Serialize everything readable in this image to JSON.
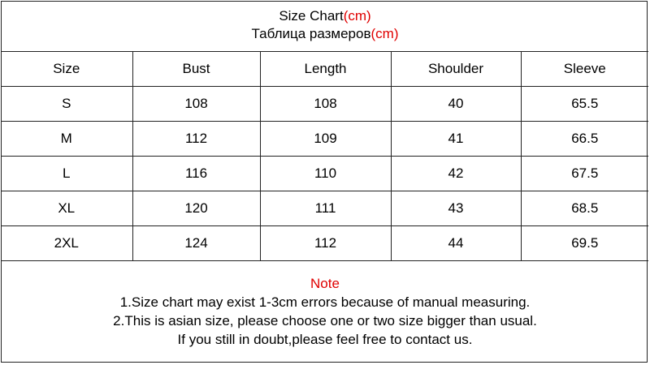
{
  "title": {
    "line1": "Size Chart",
    "line2": "Таблица размеров",
    "unit": "(cm)"
  },
  "colors": {
    "accent": "#e00000"
  },
  "table": {
    "headers": [
      "Size",
      "Bust",
      "Length",
      "Shoulder",
      "Sleeve"
    ],
    "rows": [
      [
        "S",
        "108",
        "108",
        "40",
        "65.5"
      ],
      [
        "M",
        "112",
        "109",
        "41",
        "66.5"
      ],
      [
        "L",
        "116",
        "110",
        "42",
        "67.5"
      ],
      [
        "XL",
        "120",
        "111",
        "43",
        "68.5"
      ],
      [
        "2XL",
        "124",
        "112",
        "44",
        "69.5"
      ]
    ]
  },
  "note": {
    "heading": "Note",
    "lines": [
      "1.Size chart may exist 1-3cm errors because of manual measuring.",
      "2.This is asian size, please choose one or two size bigger than usual.",
      "If you still in doubt,please feel free to contact us."
    ]
  }
}
